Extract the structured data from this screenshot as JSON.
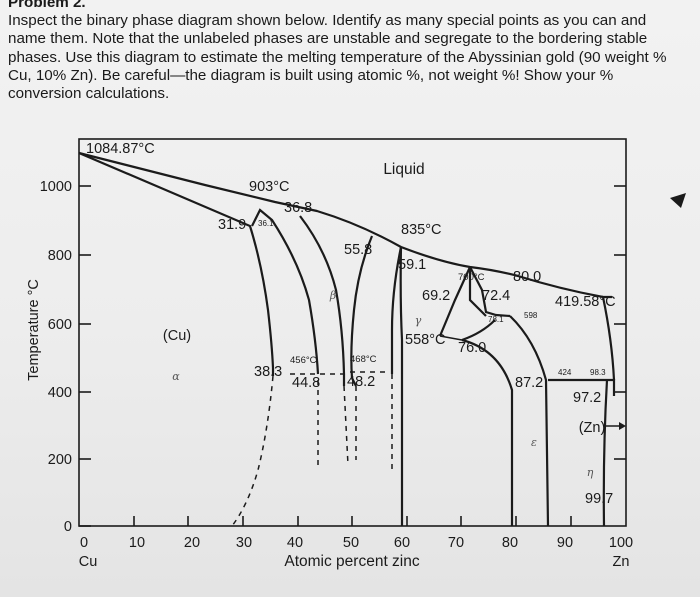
{
  "problem": {
    "heading": "Problem 2.",
    "text": "Inspect the binary phase diagram shown below. Identify as many special points as you can and name them. Note that the unlabeled phases are unstable and segregate to the bordering stable phases. Use this diagram to estimate the melting temperature of the Abyssinian gold (90 weight % Cu, 10% Zn). Be careful—the diagram is built using atomic %, not weight %! Show your % conversion calculations."
  },
  "diagram": {
    "ylabel": "Temperature °C",
    "xlabel": "Atomic percent zinc",
    "y_ticks": [
      "0",
      "200",
      "400",
      "600",
      "800",
      "1000"
    ],
    "x_ticks": [
      "0",
      "10",
      "20",
      "30",
      "40",
      "50",
      "60",
      "70",
      "80",
      "90",
      "100"
    ],
    "left_element": "Cu",
    "right_element": "Zn",
    "phase_labels": {
      "liquid": "Liquid",
      "cu": "(Cu)",
      "zn": "(Zn)",
      "alpha": "α",
      "beta": "β",
      "gamma": "γ",
      "epsilon": "ε",
      "eta": "η"
    },
    "annotations": {
      "cu_melting": "1084.87°C",
      "t903": "903°C",
      "c368": "36.8",
      "c319": "31.9",
      "c361": "36.1",
      "t835": "835°C",
      "c558a": "55.8",
      "c591": "59.1",
      "c692": "69.2",
      "t700": "700°C",
      "c800": "80.0",
      "c724": "72.4",
      "c781": "78.1",
      "t598": "598",
      "zn_melting": "419.58°C",
      "t558": "558°C",
      "c760": "76.0",
      "c383": "38.3",
      "t456": "456°C",
      "t468": "468°C",
      "c448": "44.8",
      "c482": "48.2",
      "c872": "87.2",
      "t424": "424",
      "c983": "98.3",
      "c972": "97.2",
      "c997": "99.7"
    }
  }
}
